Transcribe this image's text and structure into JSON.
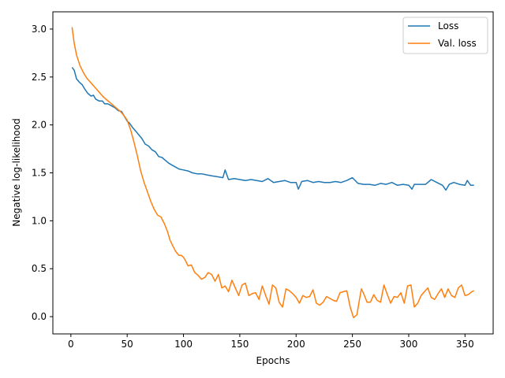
{
  "chart_data": {
    "type": "line",
    "title": "",
    "xlabel": "Epochs",
    "ylabel": "Negative log-likelihood",
    "xlim": [
      -16,
      375
    ],
    "ylim": [
      -0.18,
      3.18
    ],
    "xticks": [
      0,
      50,
      100,
      150,
      200,
      250,
      300,
      350
    ],
    "yticks": [
      0.0,
      0.5,
      1.0,
      1.5,
      2.0,
      2.5,
      3.0
    ],
    "grid": false,
    "legend_position": "top-right",
    "series": [
      {
        "name": "Loss",
        "color": "#1f77b4",
        "x": [
          1,
          3,
          5,
          8,
          10,
          12,
          15,
          18,
          20,
          22,
          25,
          28,
          30,
          33,
          36,
          39,
          42,
          45,
          48,
          50,
          52,
          55,
          58,
          60,
          63,
          66,
          69,
          72,
          75,
          78,
          81,
          84,
          87,
          90,
          93,
          96,
          100,
          104,
          108,
          112,
          116,
          120,
          125,
          130,
          135,
          137,
          140,
          145,
          150,
          155,
          160,
          165,
          170,
          175,
          180,
          185,
          190,
          195,
          200,
          202,
          205,
          210,
          215,
          220,
          225,
          230,
          235,
          240,
          245,
          250,
          255,
          260,
          265,
          270,
          275,
          280,
          285,
          290,
          295,
          300,
          303,
          305,
          310,
          315,
          320,
          325,
          330,
          333,
          336,
          340,
          345,
          350,
          352,
          355,
          358
        ],
        "y": [
          2.6,
          2.57,
          2.48,
          2.44,
          2.42,
          2.38,
          2.33,
          2.3,
          2.31,
          2.27,
          2.25,
          2.25,
          2.22,
          2.22,
          2.2,
          2.18,
          2.15,
          2.14,
          2.08,
          2.04,
          2.02,
          1.97,
          1.93,
          1.9,
          1.86,
          1.8,
          1.78,
          1.74,
          1.72,
          1.67,
          1.66,
          1.63,
          1.6,
          1.58,
          1.56,
          1.54,
          1.53,
          1.52,
          1.5,
          1.49,
          1.49,
          1.48,
          1.47,
          1.46,
          1.45,
          1.53,
          1.43,
          1.44,
          1.43,
          1.42,
          1.43,
          1.42,
          1.41,
          1.44,
          1.4,
          1.41,
          1.42,
          1.4,
          1.4,
          1.33,
          1.41,
          1.42,
          1.4,
          1.41,
          1.4,
          1.4,
          1.41,
          1.4,
          1.42,
          1.45,
          1.39,
          1.38,
          1.38,
          1.37,
          1.39,
          1.38,
          1.4,
          1.37,
          1.38,
          1.37,
          1.33,
          1.38,
          1.38,
          1.38,
          1.43,
          1.4,
          1.37,
          1.32,
          1.38,
          1.4,
          1.38,
          1.37,
          1.42,
          1.37,
          1.37
        ]
      },
      {
        "name": "Val. loss",
        "color": "#ff7f0e",
        "x": [
          1,
          3,
          5,
          8,
          11,
          14,
          17,
          20,
          23,
          26,
          29,
          32,
          35,
          38,
          41,
          44,
          47,
          50,
          53,
          56,
          59,
          62,
          65,
          68,
          71,
          74,
          77,
          80,
          83,
          86,
          88,
          90,
          93,
          96,
          98,
          100,
          102,
          104,
          107,
          110,
          113,
          116,
          119,
          122,
          125,
          128,
          131,
          134,
          137,
          140,
          143,
          146,
          149,
          152,
          155,
          158,
          161,
          164,
          167,
          170,
          173,
          176,
          179,
          182,
          185,
          188,
          191,
          194,
          197,
          200,
          203,
          206,
          209,
          212,
          215,
          218,
          221,
          224,
          227,
          230,
          233,
          236,
          239,
          242,
          245,
          248,
          251,
          254,
          256,
          258,
          260,
          263,
          266,
          269,
          272,
          275,
          278,
          281,
          284,
          287,
          290,
          293,
          296,
          299,
          302,
          305,
          308,
          311,
          314,
          317,
          320,
          323,
          326,
          329,
          332,
          335,
          338,
          341,
          344,
          347,
          350,
          353,
          356,
          358
        ],
        "y": [
          3.02,
          2.85,
          2.73,
          2.62,
          2.55,
          2.49,
          2.45,
          2.41,
          2.37,
          2.33,
          2.29,
          2.26,
          2.23,
          2.2,
          2.17,
          2.14,
          2.1,
          2.05,
          1.95,
          1.82,
          1.68,
          1.52,
          1.4,
          1.3,
          1.2,
          1.12,
          1.06,
          1.04,
          0.97,
          0.88,
          0.8,
          0.75,
          0.68,
          0.64,
          0.64,
          0.62,
          0.58,
          0.53,
          0.54,
          0.46,
          0.43,
          0.39,
          0.41,
          0.46,
          0.44,
          0.37,
          0.44,
          0.3,
          0.32,
          0.26,
          0.38,
          0.3,
          0.22,
          0.33,
          0.35,
          0.22,
          0.24,
          0.25,
          0.18,
          0.32,
          0.22,
          0.13,
          0.33,
          0.3,
          0.15,
          0.1,
          0.29,
          0.27,
          0.24,
          0.2,
          0.14,
          0.22,
          0.2,
          0.21,
          0.28,
          0.14,
          0.12,
          0.15,
          0.21,
          0.19,
          0.17,
          0.16,
          0.25,
          0.26,
          0.27,
          0.1,
          -0.01,
          0.02,
          0.16,
          0.29,
          0.24,
          0.15,
          0.15,
          0.23,
          0.17,
          0.15,
          0.33,
          0.23,
          0.14,
          0.21,
          0.2,
          0.25,
          0.14,
          0.32,
          0.33,
          0.1,
          0.14,
          0.22,
          0.26,
          0.3,
          0.2,
          0.18,
          0.24,
          0.29,
          0.2,
          0.29,
          0.22,
          0.2,
          0.3,
          0.33,
          0.22,
          0.23,
          0.26,
          0.27
        ]
      }
    ]
  }
}
